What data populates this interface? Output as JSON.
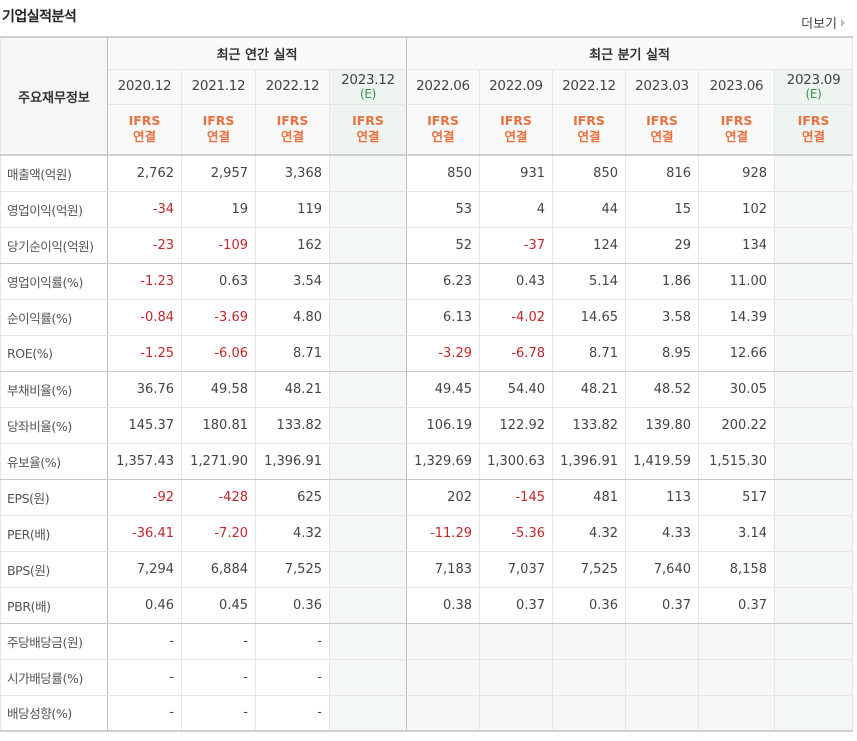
{
  "header": {
    "title": "기업실적분석",
    "more_label": "더보기"
  },
  "table": {
    "row_header_label": "주요재무정보",
    "groups": {
      "annual": "최근 연간 실적",
      "quarterly": "최근 분기 실적"
    },
    "annual_periods": [
      {
        "period": "2020.12",
        "estimate": "",
        "standard": "IFRS",
        "basis": "연결"
      },
      {
        "period": "2021.12",
        "estimate": "",
        "standard": "IFRS",
        "basis": "연결"
      },
      {
        "period": "2022.12",
        "estimate": "",
        "standard": "IFRS",
        "basis": "연결"
      },
      {
        "period": "2023.12",
        "estimate": "(E)",
        "standard": "IFRS",
        "basis": "연결"
      }
    ],
    "quarterly_periods": [
      {
        "period": "2022.06",
        "estimate": "",
        "standard": "IFRS",
        "basis": "연결"
      },
      {
        "period": "2022.09",
        "estimate": "",
        "standard": "IFRS",
        "basis": "연결"
      },
      {
        "period": "2022.12",
        "estimate": "",
        "standard": "IFRS",
        "basis": "연결"
      },
      {
        "period": "2023.03",
        "estimate": "",
        "standard": "IFRS",
        "basis": "연결"
      },
      {
        "period": "2023.06",
        "estimate": "",
        "standard": "IFRS",
        "basis": "연결"
      },
      {
        "period": "2023.09",
        "estimate": "(E)",
        "standard": "IFRS",
        "basis": "연결"
      }
    ],
    "rows": [
      {
        "label": "매출액(억원)",
        "annual": [
          "2,762",
          "2,957",
          "3,368",
          ""
        ],
        "quarterly": [
          "850",
          "931",
          "850",
          "816",
          "928",
          ""
        ]
      },
      {
        "label": "영업이익(억원)",
        "annual": [
          "-34",
          "19",
          "119",
          ""
        ],
        "quarterly": [
          "53",
          "4",
          "44",
          "15",
          "102",
          ""
        ]
      },
      {
        "label": "당기순이익(억원)",
        "annual": [
          "-23",
          "-109",
          "162",
          ""
        ],
        "quarterly": [
          "52",
          "-37",
          "124",
          "29",
          "134",
          ""
        ]
      },
      {
        "label": "영업이익률(%)",
        "annual": [
          "-1.23",
          "0.63",
          "3.54",
          ""
        ],
        "quarterly": [
          "6.23",
          "0.43",
          "5.14",
          "1.86",
          "11.00",
          ""
        ]
      },
      {
        "label": "순이익률(%)",
        "annual": [
          "-0.84",
          "-3.69",
          "4.80",
          ""
        ],
        "quarterly": [
          "6.13",
          "-4.02",
          "14.65",
          "3.58",
          "14.39",
          ""
        ]
      },
      {
        "label": "ROE(%)",
        "annual": [
          "-1.25",
          "-6.06",
          "8.71",
          ""
        ],
        "quarterly": [
          "-3.29",
          "-6.78",
          "8.71",
          "8.95",
          "12.66",
          ""
        ]
      },
      {
        "label": "부채비율(%)",
        "annual": [
          "36.76",
          "49.58",
          "48.21",
          ""
        ],
        "quarterly": [
          "49.45",
          "54.40",
          "48.21",
          "48.52",
          "30.05",
          ""
        ]
      },
      {
        "label": "당좌비율(%)",
        "annual": [
          "145.37",
          "180.81",
          "133.82",
          ""
        ],
        "quarterly": [
          "106.19",
          "122.92",
          "133.82",
          "139.80",
          "200.22",
          ""
        ]
      },
      {
        "label": "유보율(%)",
        "annual": [
          "1,357.43",
          "1,271.90",
          "1,396.91",
          ""
        ],
        "quarterly": [
          "1,329.69",
          "1,300.63",
          "1,396.91",
          "1,419.59",
          "1,515.30",
          ""
        ]
      },
      {
        "label": "EPS(원)",
        "annual": [
          "-92",
          "-428",
          "625",
          ""
        ],
        "quarterly": [
          "202",
          "-145",
          "481",
          "113",
          "517",
          ""
        ]
      },
      {
        "label": "PER(배)",
        "annual": [
          "-36.41",
          "-7.20",
          "4.32",
          ""
        ],
        "quarterly": [
          "-11.29",
          "-5.36",
          "4.32",
          "4.33",
          "3.14",
          ""
        ]
      },
      {
        "label": "BPS(원)",
        "annual": [
          "7,294",
          "6,884",
          "7,525",
          ""
        ],
        "quarterly": [
          "7,183",
          "7,037",
          "7,525",
          "7,640",
          "8,158",
          ""
        ]
      },
      {
        "label": "PBR(배)",
        "annual": [
          "0.46",
          "0.45",
          "0.36",
          ""
        ],
        "quarterly": [
          "0.38",
          "0.37",
          "0.36",
          "0.37",
          "0.37",
          ""
        ]
      },
      {
        "label": "주당배당금(원)",
        "annual": [
          "-",
          "-",
          "-",
          ""
        ],
        "quarterly": [
          "",
          "",
          "",
          "",
          "",
          ""
        ]
      },
      {
        "label": "시가배당률(%)",
        "annual": [
          "-",
          "-",
          "-",
          ""
        ],
        "quarterly": [
          "",
          "",
          "",
          "",
          "",
          ""
        ]
      },
      {
        "label": "배당성향(%)",
        "annual": [
          "-",
          "-",
          "-",
          ""
        ],
        "quarterly": [
          "",
          "",
          "",
          "",
          "",
          ""
        ]
      }
    ]
  },
  "colors": {
    "negative": "#c4262d",
    "ifrs_label": "#e9713f",
    "estimate_column_bg": "#f3f8f4",
    "estimate_text": "#3c8c4f"
  }
}
